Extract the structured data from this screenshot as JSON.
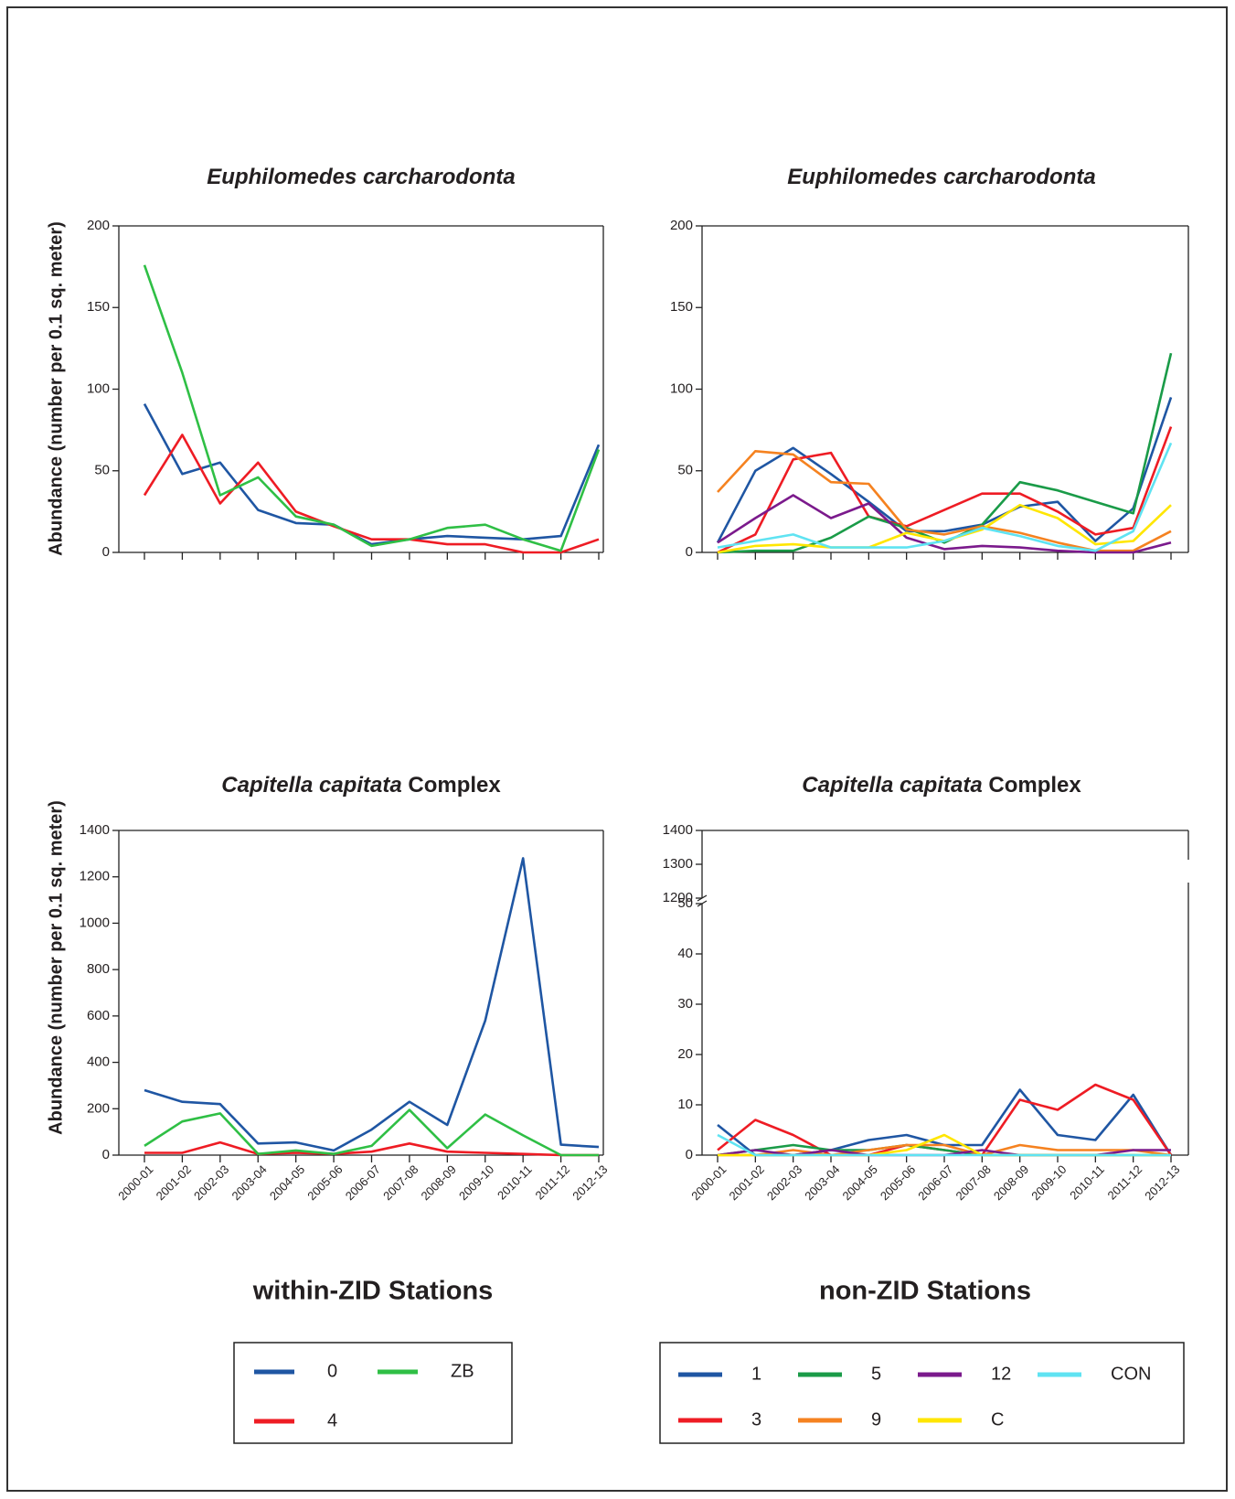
{
  "chart_data": [
    {
      "type": "line",
      "title": "Euphilomedes carcharodonta",
      "title_italic_words": 2,
      "ylabel": "Abundance (number per 0.1 sq. meter)",
      "categories": [
        null,
        null,
        null,
        null,
        null,
        null,
        null,
        null,
        null,
        null,
        null,
        null,
        null
      ],
      "ylim": [
        0,
        200
      ],
      "yticks": [
        0,
        50,
        100,
        150,
        200
      ],
      "series": [
        {
          "name": "0",
          "color": "#1f56a3",
          "values": [
            91,
            48,
            55,
            26,
            18,
            17,
            5,
            8,
            10,
            9,
            8,
            10,
            66
          ]
        },
        {
          "name": "4",
          "color": "#ee1c24",
          "values": [
            35,
            72,
            30,
            55,
            25,
            16,
            8,
            8,
            5,
            5,
            0,
            0,
            8
          ]
        },
        {
          "name": "ZB",
          "color": "#2fbf45",
          "values": [
            176,
            110,
            35,
            46,
            22,
            17,
            4,
            8,
            15,
            17,
            8,
            1,
            63
          ]
        }
      ]
    },
    {
      "type": "line",
      "title": "Euphilomedes carcharodonta",
      "title_italic_words": 2,
      "categories": [
        null,
        null,
        null,
        null,
        null,
        null,
        null,
        null,
        null,
        null,
        null,
        null,
        null
      ],
      "ylim": [
        0,
        200
      ],
      "yticks": [
        0,
        50,
        100,
        150,
        200
      ],
      "series": [
        {
          "name": "1",
          "color": "#1f56a3",
          "values": [
            6,
            50,
            64,
            48,
            31,
            13,
            13,
            17,
            28,
            31,
            7,
            27,
            95
          ]
        },
        {
          "name": "3",
          "color": "#ee1c24",
          "values": [
            0,
            11,
            57,
            61,
            22,
            16,
            26,
            36,
            36,
            25,
            11,
            15,
            77
          ]
        },
        {
          "name": "5",
          "color": "#1a9b48",
          "values": [
            0,
            1,
            1,
            9,
            22,
            15,
            6,
            17,
            43,
            38,
            31,
            24,
            122
          ]
        },
        {
          "name": "9",
          "color": "#f58220",
          "values": [
            37,
            62,
            60,
            43,
            42,
            14,
            11,
            16,
            12,
            6,
            1,
            1,
            13
          ]
        },
        {
          "name": "12",
          "color": "#7b1a8c",
          "values": [
            6,
            21,
            35,
            21,
            30,
            9,
            2,
            4,
            3,
            1,
            0,
            0,
            6
          ]
        },
        {
          "name": "C",
          "color": "#ffe600",
          "values": [
            0,
            4,
            5,
            3,
            3,
            12,
            7,
            14,
            29,
            21,
            5,
            7,
            29
          ]
        },
        {
          "name": "CON",
          "color": "#5fe3f2",
          "values": [
            3,
            7,
            11,
            3,
            3,
            3,
            7,
            15,
            10,
            4,
            1,
            13,
            67
          ]
        }
      ]
    },
    {
      "type": "line",
      "title": "Capitella capitata Complex",
      "title_italic_words": 2,
      "ylabel": "Abundance (number per 0.1 sq. meter)",
      "categories": [
        "2000-01",
        "2001-02",
        "2002-03",
        "2003-04",
        "2004-05",
        "2005-06",
        "2006-07",
        "2007-08",
        "2008-09",
        "2009-10",
        "2010-11",
        "2011-12",
        "2012-13"
      ],
      "ylim": [
        0,
        1400
      ],
      "yticks": [
        0,
        200,
        400,
        600,
        800,
        1000,
        1200,
        1400
      ],
      "series": [
        {
          "name": "0",
          "color": "#1f56a3",
          "values": [
            280,
            230,
            220,
            50,
            55,
            20,
            110,
            230,
            130,
            580,
            1280,
            45,
            35
          ]
        },
        {
          "name": "4",
          "color": "#ee1c24",
          "values": [
            10,
            10,
            55,
            5,
            10,
            5,
            15,
            50,
            15,
            10,
            5,
            0,
            0
          ]
        },
        {
          "name": "ZB",
          "color": "#2fbf45",
          "values": [
            40,
            145,
            180,
            5,
            20,
            5,
            40,
            195,
            30,
            175,
            85,
            0,
            0
          ]
        }
      ]
    },
    {
      "type": "line",
      "title": "Capitella capitata Complex",
      "title_italic_words": 2,
      "categories": [
        "2000-01",
        "2001-02",
        "2002-03",
        "2003-04",
        "2004-05",
        "2005-06",
        "2006-07",
        "2007-08",
        "2008-09",
        "2009-10",
        "2010-11",
        "2011-12",
        "2012-13"
      ],
      "ylim": [
        0,
        50
      ],
      "yticks": [
        0,
        10,
        20,
        30,
        40,
        50
      ],
      "axis_break": {
        "ylim": [
          1200,
          1400
        ],
        "yticks": [
          1200,
          1300,
          1400
        ]
      },
      "series": [
        {
          "name": "1",
          "color": "#1f56a3",
          "values": [
            6,
            0,
            0,
            1,
            3,
            4,
            2,
            2,
            13,
            4,
            3,
            12,
            0
          ]
        },
        {
          "name": "3",
          "color": "#ee1c24",
          "values": [
            1,
            7,
            4,
            0,
            0,
            2,
            1,
            0,
            11,
            9,
            14,
            11,
            0
          ]
        },
        {
          "name": "5",
          "color": "#1a9b48",
          "values": [
            0,
            1,
            2,
            1,
            1,
            2,
            1,
            0,
            0,
            0,
            0,
            0,
            0
          ]
        },
        {
          "name": "9",
          "color": "#f58220",
          "values": [
            0,
            0,
            1,
            0,
            1,
            2,
            2,
            0,
            2,
            1,
            1,
            1,
            0
          ]
        },
        {
          "name": "12",
          "color": "#7b1a8c",
          "values": [
            0,
            1,
            0,
            1,
            0,
            0,
            0,
            1,
            0,
            0,
            0,
            1,
            1
          ]
        },
        {
          "name": "C",
          "color": "#ffe600",
          "values": [
            0,
            0,
            0,
            0,
            0,
            1,
            4,
            0,
            0,
            0,
            0,
            0,
            0
          ]
        },
        {
          "name": "CON",
          "color": "#5fe3f2",
          "values": [
            4,
            0,
            0,
            0,
            0,
            0,
            0,
            0,
            0,
            0,
            0,
            0,
            0
          ]
        }
      ]
    }
  ],
  "groups": [
    {
      "label": "within-ZID Stations"
    },
    {
      "label": "non-ZID Stations"
    }
  ]
}
